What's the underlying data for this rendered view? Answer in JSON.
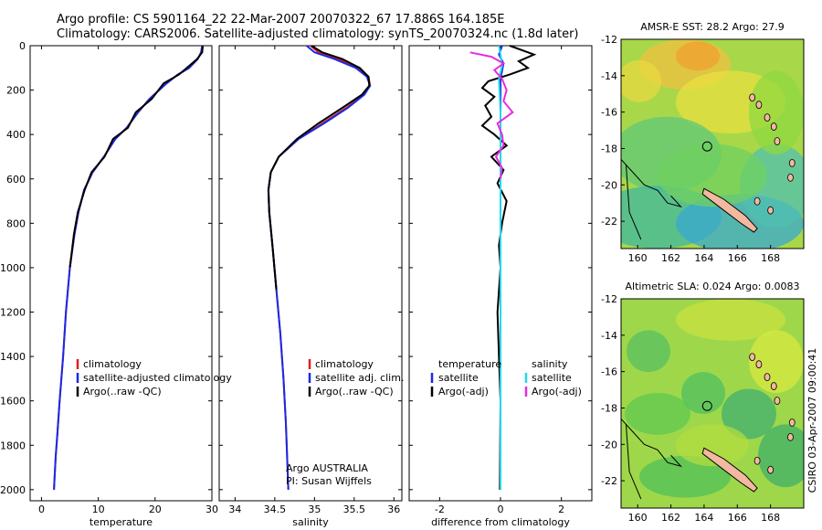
{
  "header": {
    "line1": "Argo profile: CS 5901164_22 22-Mar-2007 20070322_67 17.886S 164.185E",
    "line2": "Climatology: CARS2006. Satellite-adjusted climatology: synTS_20070324.nc (1.8d later)"
  },
  "side_label": "CSIRO 03-Apr-2007 09:00:41",
  "colors": {
    "climatology": "#e01e1e",
    "satellite": "#1a2ae6",
    "argo": "#000000",
    "sat_salinity": "#22d8e8",
    "argo_salinity": "#e82ae0"
  },
  "chart_data": [
    {
      "type": "line",
      "xlabel": "temperature",
      "ylabel": "",
      "xlim": [
        -2,
        30
      ],
      "ylim": [
        2050,
        0
      ],
      "xticks": [
        0,
        10,
        20,
        30
      ],
      "yticks": [
        0,
        200,
        400,
        600,
        800,
        1000,
        1200,
        1400,
        1600,
        1800,
        2000
      ],
      "legend": [
        "climatology",
        "satellite-adjusted climatology",
        "Argo(..raw -QC)"
      ],
      "legend_position": "lower-right",
      "series": [
        {
          "name": "climatology",
          "color": "#e01e1e",
          "x": [
            28.3,
            28.1,
            27.5,
            26,
            24,
            22,
            19,
            17,
            15,
            13,
            11,
            9,
            7.5,
            6.5,
            5.8,
            5,
            4.3,
            3.8,
            3.2,
            2.8,
            2.5,
            2.3,
            2.2
          ],
          "y": [
            0,
            30,
            60,
            100,
            130,
            170,
            240,
            300,
            370,
            420,
            500,
            570,
            650,
            750,
            850,
            1000,
            1200,
            1400,
            1600,
            1750,
            1850,
            1950,
            2000
          ]
        },
        {
          "name": "satellite-adjusted climatology",
          "color": "#1a2ae6",
          "x": [
            28.3,
            28.1,
            27.5,
            26,
            24,
            22,
            19,
            17,
            15,
            13,
            11,
            9,
            7.5,
            6.5,
            5.8,
            5,
            4.3,
            3.8,
            3.2,
            2.8,
            2.5,
            2.3,
            2.2
          ],
          "y": [
            0,
            30,
            60,
            100,
            130,
            170,
            240,
            300,
            370,
            420,
            500,
            570,
            650,
            750,
            850,
            1000,
            1200,
            1400,
            1600,
            1750,
            1850,
            1950,
            2000
          ]
        },
        {
          "name": "Argo(..raw -QC)",
          "color": "#000000",
          "x": [
            28.4,
            28.3,
            27.4,
            25.6,
            24.2,
            21.5,
            19.4,
            16.6,
            15.2,
            12.6,
            11.1,
            8.8,
            7.6,
            6.4,
            5.7,
            5
          ],
          "y": [
            0,
            30,
            60,
            100,
            130,
            170,
            240,
            300,
            370,
            420,
            500,
            570,
            650,
            750,
            850,
            1000
          ]
        }
      ]
    },
    {
      "type": "line",
      "xlabel": "salinity",
      "ylabel": "",
      "xlim": [
        33.8,
        36.1
      ],
      "ylim": [
        2050,
        0
      ],
      "xticks": [
        34,
        34.5,
        35,
        35.5,
        36
      ],
      "legend": [
        "climatology",
        "satellite adj. clim.",
        "Argo(..raw -QC)"
      ],
      "legend_position": "lower-right",
      "annotations": [
        "Argo AUSTRALIA",
        "PI: Susan Wijffels"
      ],
      "series": [
        {
          "name": "climatology",
          "color": "#e01e1e",
          "x": [
            34.95,
            35.05,
            35.3,
            35.55,
            35.68,
            35.7,
            35.62,
            35.4,
            35.1,
            34.8,
            34.55,
            34.45,
            34.42,
            34.43,
            34.47,
            34.52,
            34.57,
            34.61,
            34.64,
            34.66,
            34.67
          ],
          "y": [
            0,
            30,
            60,
            100,
            140,
            180,
            220,
            280,
            350,
            420,
            500,
            570,
            650,
            750,
            900,
            1100,
            1300,
            1500,
            1700,
            1900,
            2000
          ]
        },
        {
          "name": "satellite adj. clim.",
          "color": "#1a2ae6",
          "x": [
            34.9,
            35.0,
            35.25,
            35.52,
            35.66,
            35.7,
            35.63,
            35.42,
            35.12,
            34.8,
            34.55,
            34.45,
            34.42,
            34.43,
            34.47,
            34.52,
            34.57,
            34.61,
            34.64,
            34.66,
            34.67
          ],
          "y": [
            0,
            30,
            60,
            100,
            140,
            180,
            220,
            280,
            350,
            420,
            500,
            570,
            650,
            750,
            900,
            1100,
            1300,
            1500,
            1700,
            1900,
            2000
          ]
        },
        {
          "name": "Argo(..raw -QC)",
          "color": "#000000",
          "x": [
            34.96,
            35.1,
            35.35,
            35.57,
            35.68,
            35.69,
            35.6,
            35.35,
            35.05,
            34.78,
            34.55,
            34.45,
            34.42,
            34.43,
            34.47,
            34.52
          ],
          "y": [
            0,
            30,
            60,
            100,
            140,
            180,
            220,
            280,
            350,
            420,
            500,
            570,
            650,
            750,
            900,
            1100
          ]
        }
      ]
    },
    {
      "type": "line",
      "xlabel": "difference from climatology",
      "ylabel": "",
      "xlim": [
        -3,
        3
      ],
      "ylim": [
        2050,
        0
      ],
      "xticks": [
        -2,
        0,
        2
      ],
      "legend_left": [
        "temperature",
        "satellite",
        "Argo(-adj)"
      ],
      "legend_right": [
        "salinity",
        "satellite",
        "Argo(-adj)"
      ],
      "series": [
        {
          "name": "temperature satellite",
          "color": "#1a2ae6",
          "x": [
            0.05,
            -0.05,
            0.1,
            0,
            0,
            0,
            0,
            0,
            0,
            0,
            0,
            0,
            0,
            0
          ],
          "y": [
            0,
            40,
            80,
            150,
            300,
            500,
            700,
            900,
            1100,
            1300,
            1500,
            1700,
            1900,
            2000
          ]
        },
        {
          "name": "temperature Argo(-adj)",
          "color": "#000000",
          "x": [
            0.3,
            1.1,
            0.6,
            0.9,
            0.3,
            -0.4,
            -0.6,
            -0.2,
            -0.5,
            -0.3,
            -0.6,
            -0.2,
            0.2,
            -0.3,
            0.1,
            -0.1,
            0.2,
            0.05,
            -0.05,
            0,
            -0.1,
            -0.05,
            0,
            -0.02
          ],
          "y": [
            0,
            40,
            70,
            100,
            130,
            160,
            190,
            230,
            270,
            320,
            360,
            400,
            450,
            500,
            560,
            620,
            700,
            800,
            900,
            1000,
            1200,
            1400,
            1600,
            2000
          ]
        },
        {
          "name": "salinity satellite",
          "color": "#22d8e8",
          "x": [
            -0.05,
            0,
            0.05,
            -0.05,
            0,
            0,
            0,
            0,
            0,
            0,
            0
          ],
          "y": [
            0,
            40,
            90,
            150,
            300,
            500,
            800,
            1100,
            1400,
            1700,
            2000
          ]
        },
        {
          "name": "salinity Argo(-adj)",
          "color": "#e82ae0",
          "x": [
            -1.0,
            -0.3,
            0.1,
            -0.2,
            0.05,
            0.2,
            0.1,
            0.4,
            -0.1,
            0.05,
            0.1,
            -0.15,
            0.05,
            0
          ],
          "y": [
            30,
            50,
            80,
            110,
            150,
            200,
            250,
            300,
            350,
            400,
            450,
            500,
            550,
            600
          ]
        }
      ]
    },
    {
      "type": "heatmap",
      "title": "AMSR-E SST: 28.2 Argo: 27.9",
      "xlim": [
        159,
        170
      ],
      "ylim": [
        -23.5,
        -12
      ],
      "xticks": [
        160,
        162,
        164,
        166,
        168
      ],
      "yticks": [
        -12,
        -14,
        -16,
        -18,
        -20,
        -22
      ],
      "values": {
        "AMSR-E SST": 28.2,
        "Argo": 27.9
      }
    },
    {
      "type": "heatmap",
      "title": "Altimetric SLA: 0.024 Argo: 0.0083",
      "xlim": [
        159,
        170
      ],
      "ylim": [
        -23.5,
        -12
      ],
      "xticks": [
        160,
        162,
        164,
        166,
        168
      ],
      "yticks": [
        -12,
        -14,
        -16,
        -18,
        -20,
        -22
      ],
      "values": {
        "Altimetric SLA": 0.024,
        "Argo": 0.0083
      }
    }
  ]
}
